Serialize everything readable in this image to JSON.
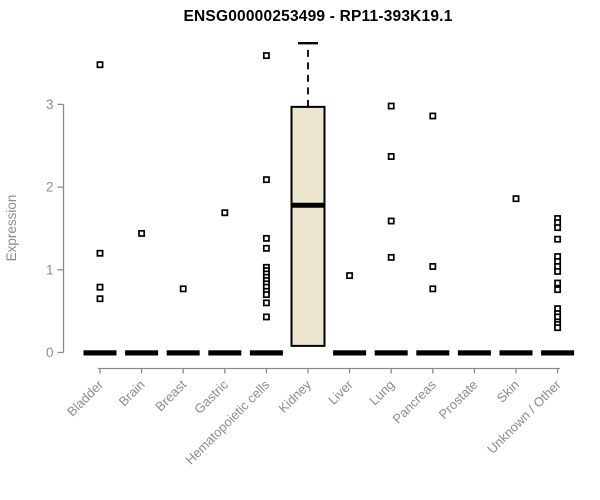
{
  "chart_data": {
    "type": "boxplot",
    "title": "ENSG00000253499 - RP11-393K19.1",
    "ylabel": "Expression",
    "xlabel": "",
    "ylim": [
      0,
      3.78
    ],
    "yticks": [
      0,
      1,
      2,
      3
    ],
    "grid": false,
    "legend": null,
    "axis_color": "#8a8a8a",
    "label_color": "#8c8c8c",
    "box_fill": "#ede7d0",
    "point_shape": "open-square",
    "categories": [
      {
        "name": "Bladder",
        "zero_bar": true,
        "box": null,
        "points": [
          3.48,
          1.2,
          0.79,
          0.65
        ]
      },
      {
        "name": "Brain",
        "zero_bar": true,
        "box": null,
        "points": [
          1.44
        ]
      },
      {
        "name": "Breast",
        "zero_bar": true,
        "box": null,
        "points": [
          0.77
        ]
      },
      {
        "name": "Gastric",
        "zero_bar": true,
        "box": null,
        "points": [
          1.69
        ]
      },
      {
        "name": "Hematopoietic cells",
        "zero_bar": true,
        "box": null,
        "points": [
          3.59,
          2.09,
          1.38,
          1.26,
          1.03,
          0.99,
          0.95,
          0.91,
          0.87,
          0.83,
          0.79,
          0.74,
          0.7,
          0.6,
          0.43
        ]
      },
      {
        "name": "Kidney",
        "zero_bar": false,
        "box": {
          "q1": 0.08,
          "median": 1.78,
          "q3": 2.97,
          "whisker_high": 3.74
        },
        "points": []
      },
      {
        "name": "Liver",
        "zero_bar": true,
        "box": null,
        "points": [
          0.93
        ]
      },
      {
        "name": "Lung",
        "zero_bar": true,
        "box": null,
        "points": [
          2.98,
          2.37,
          1.59,
          1.15
        ]
      },
      {
        "name": "Pancreas",
        "zero_bar": true,
        "box": null,
        "points": [
          2.86,
          1.04,
          0.77
        ]
      },
      {
        "name": "Prostate",
        "zero_bar": true,
        "box": null,
        "points": []
      },
      {
        "name": "Skin",
        "zero_bar": true,
        "box": null,
        "points": [
          1.86
        ]
      },
      {
        "name": "Unknown / Other",
        "zero_bar": true,
        "box": null,
        "points": [
          1.62,
          1.57,
          1.51,
          1.37,
          1.16,
          1.1,
          1.04,
          0.98,
          0.84,
          0.76,
          0.53,
          0.47,
          0.43,
          0.37,
          0.34,
          0.3
        ]
      }
    ]
  }
}
